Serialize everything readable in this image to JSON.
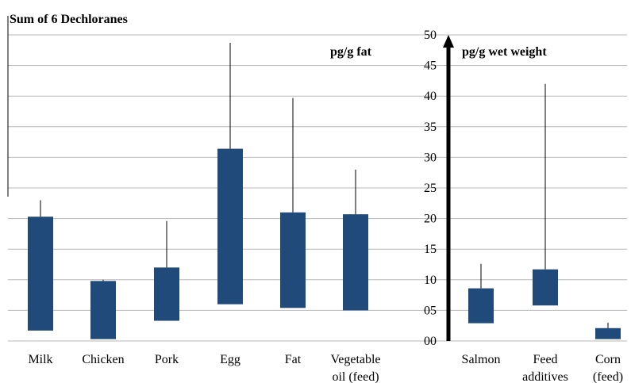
{
  "chart_data": {
    "type": "bar",
    "title": "Sum of 6 Dechloranes",
    "left_panel": {
      "unit_label": "pg/g fat",
      "categories": [
        "Milk",
        "Chicken",
        "Pork",
        "Egg",
        "Fat",
        "Vegetable oil (feed)"
      ],
      "category_lines": [
        [
          "Milk"
        ],
        [
          "Chicken"
        ],
        [
          "Pork"
        ],
        [
          "Egg"
        ],
        [
          "Fat"
        ],
        [
          "Vegetable",
          "oil (feed)"
        ]
      ],
      "box_low": [
        1.7,
        0.3,
        3.3,
        6.0,
        5.4,
        5.0
      ],
      "box_high": [
        20.3,
        9.8,
        12.0,
        31.4,
        21.0,
        20.7
      ],
      "whisker_max": [
        23.0,
        10.0,
        19.6,
        48.7,
        39.7,
        28.0
      ]
    },
    "right_panel": {
      "unit_label": "pg/g wet weight",
      "categories": [
        "Salmon",
        "Feed additives",
        "Corn (feed)"
      ],
      "category_lines": [
        [
          "Salmon"
        ],
        [
          "Feed",
          "additives"
        ],
        [
          "Corn",
          "(feed)"
        ]
      ],
      "box_low": [
        2.9,
        5.8,
        0.3
      ],
      "box_high": [
        8.6,
        11.7,
        2.1
      ],
      "whisker_max": [
        12.6,
        42.0,
        3.0
      ]
    },
    "y_axis": {
      "ylim": [
        0,
        50
      ],
      "ticks": [
        "00",
        "05",
        "10",
        "15",
        "20",
        "25",
        "30",
        "35",
        "40",
        "45",
        "50"
      ]
    },
    "grid": true,
    "colors": {
      "bar": "#1f4a7a",
      "grid": "#b8b8b8",
      "axis": "#000000"
    }
  }
}
